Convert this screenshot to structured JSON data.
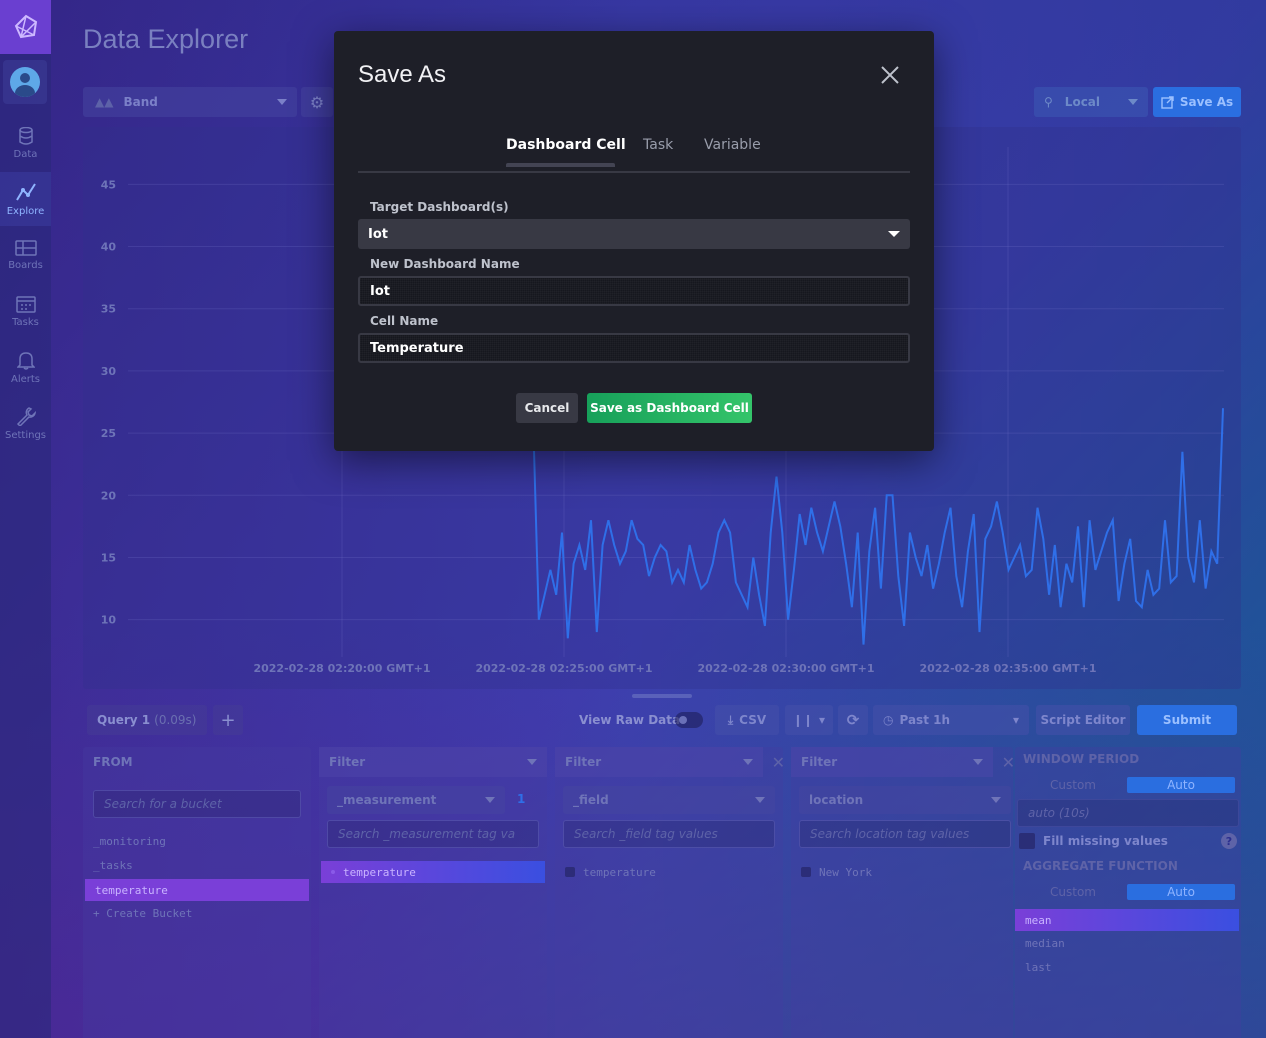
{
  "page": {
    "title": "Data Explorer"
  },
  "sidebar": {
    "items": [
      {
        "label": "Data",
        "icon": "database-icon"
      },
      {
        "label": "Explore",
        "icon": "explore-icon"
      },
      {
        "label": "Boards",
        "icon": "boards-icon"
      },
      {
        "label": "Tasks",
        "icon": "calendar-icon"
      },
      {
        "label": "Alerts",
        "icon": "bell-icon"
      },
      {
        "label": "Settings",
        "icon": "wrench-icon"
      }
    ]
  },
  "header": {
    "visualization": "Band",
    "timezone": "Local",
    "save_as": "Save As"
  },
  "chart_data": {
    "type": "line",
    "yticks": [
      10,
      15,
      20,
      25,
      30,
      35,
      40,
      45
    ],
    "ylim": [
      7,
      48
    ],
    "xticks": [
      "2022-02-28 02:20:00 GMT+1",
      "2022-02-28 02:25:00 GMT+1",
      "2022-02-28 02:30:00 GMT+1",
      "2022-02-28 02:35:00 GMT+1"
    ],
    "series": [
      {
        "color": "#2f6fe8",
        "values": [
          26.5,
          10,
          12,
          14,
          12,
          17,
          8.5,
          14.5,
          16,
          14,
          18,
          9,
          16,
          18,
          16,
          14.5,
          15.5,
          18,
          16.5,
          16,
          13.5,
          15,
          16,
          15.5,
          13,
          14,
          13,
          16,
          14,
          12.5,
          13,
          14.5,
          17,
          18,
          17,
          13,
          12,
          11,
          15,
          12,
          9.5,
          17,
          21.5,
          17,
          10,
          14,
          18.5,
          16,
          19,
          17,
          15.5,
          17.5,
          19.5,
          17.5,
          14.5,
          11,
          17,
          8,
          15.5,
          19,
          12.5,
          20,
          20,
          13.5,
          9.5,
          17,
          15,
          13.5,
          16,
          12.5,
          14.5,
          17,
          19,
          13.5,
          11,
          15.5,
          18.5,
          9,
          16.5,
          17.5,
          19.5,
          17,
          14,
          15,
          16,
          13.5,
          14,
          19,
          16.5,
          12,
          16,
          11,
          14.5,
          13,
          17.5,
          11,
          18,
          14,
          15.5,
          17,
          18,
          11.5,
          14.5,
          16.5,
          11.5,
          11,
          14,
          12,
          12.5,
          18,
          13,
          13.5,
          23.5,
          15,
          13,
          18,
          12.5,
          15.5,
          14.5,
          27
        ]
      }
    ]
  },
  "query": {
    "tab_label": "Query 1",
    "tab_time": "(0.09s)",
    "view_raw": "View Raw Data",
    "csv": "CSV",
    "time_range": "Past 1h",
    "script_editor": "Script Editor",
    "submit": "Submit"
  },
  "builder": {
    "from": {
      "title": "FROM",
      "search_placeholder": "Search for a bucket",
      "buckets": [
        "_monitoring",
        "_tasks",
        "temperature",
        "+ Create Bucket"
      ]
    },
    "filter1": {
      "title": "Filter",
      "key": "_measurement",
      "count": "1",
      "search_placeholder": "Search _measurement tag va",
      "values": [
        "temperature"
      ]
    },
    "filter2": {
      "title": "Filter",
      "key": "_field",
      "search_placeholder": "Search _field tag values",
      "values": [
        "temperature"
      ]
    },
    "filter3": {
      "title": "Filter",
      "key": "location",
      "search_placeholder": "Search location tag values",
      "values": [
        "New York"
      ]
    },
    "window": {
      "title": "WINDOW PERIOD",
      "custom": "Custom",
      "auto": "Auto",
      "period": "auto (10s)",
      "fill_missing": "Fill missing values"
    },
    "aggregate": {
      "title": "AGGREGATE FUNCTION",
      "custom": "Custom",
      "auto": "Auto",
      "functions": [
        "mean",
        "median",
        "last"
      ]
    }
  },
  "modal": {
    "title": "Save As",
    "tabs": [
      "Dashboard Cell",
      "Task",
      "Variable"
    ],
    "target_label": "Target Dashboard(s)",
    "target_value": "Iot",
    "new_name_label": "New Dashboard Name",
    "new_name_value": "Iot",
    "cell_label": "Cell Name",
    "cell_value": "Temperature",
    "cancel": "Cancel",
    "save": "Save as Dashboard Cell"
  }
}
